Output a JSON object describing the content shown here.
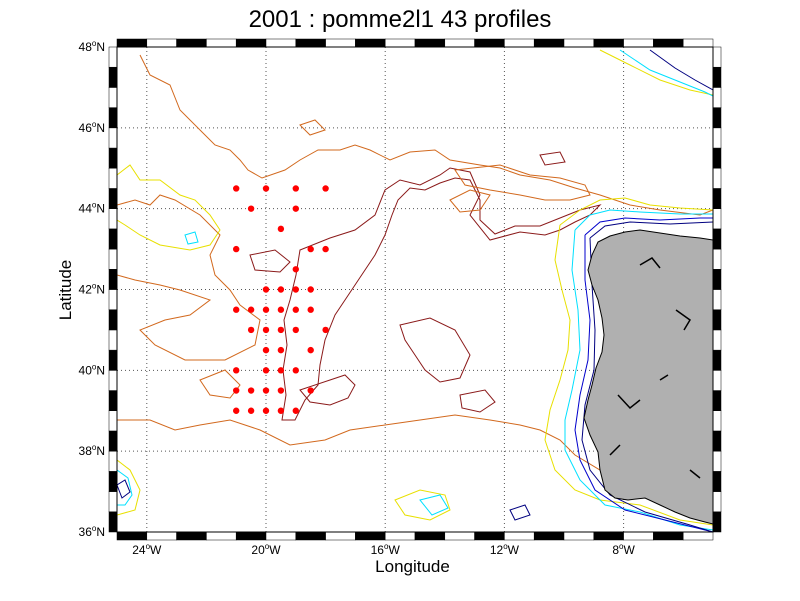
{
  "title": "2001 : pomme2l1  43 profiles",
  "xlabel": "Longitude",
  "ylabel": "Latitude",
  "colors": {
    "land": "#b0b0b0",
    "profile": "#ff0000",
    "contour_deep": "#8b1a1a",
    "contour_mid": "#d2691e",
    "contour_orange": "#e07020",
    "contour_yellow": "#e8e000",
    "contour_cyan": "#00e0ff",
    "contour_blue": "#0000cc",
    "contour_navy": "#000080",
    "grid": "#555555"
  },
  "map": {
    "lon_range": [
      -25,
      -5
    ],
    "lat_range": [
      36,
      48
    ],
    "x_ticks": [
      {
        "lon": -24,
        "text": "24",
        "hemi": "W"
      },
      {
        "lon": -20,
        "text": "20",
        "hemi": "W"
      },
      {
        "lon": -16,
        "text": "16",
        "hemi": "W"
      },
      {
        "lon": -12,
        "text": "12",
        "hemi": "W"
      },
      {
        "lon": -8,
        "text": "8",
        "hemi": "W"
      }
    ],
    "y_ticks": [
      {
        "lat": 36,
        "text": "36",
        "hemi": "N"
      },
      {
        "lat": 38,
        "text": "38",
        "hemi": "N"
      },
      {
        "lat": 40,
        "text": "40",
        "hemi": "N"
      },
      {
        "lat": 42,
        "text": "42",
        "hemi": "N"
      },
      {
        "lat": 44,
        "text": "44",
        "hemi": "N"
      },
      {
        "lat": 46,
        "text": "46",
        "hemi": "N"
      },
      {
        "lat": 48,
        "text": "48",
        "hemi": "N"
      }
    ],
    "profiles": [
      [
        -21,
        44.5
      ],
      [
        -20,
        44.5
      ],
      [
        -19,
        44.5
      ],
      [
        -18,
        44.5
      ],
      [
        -20.5,
        44
      ],
      [
        -19,
        44
      ],
      [
        -19.5,
        43.5
      ],
      [
        -21,
        43
      ],
      [
        -18.5,
        43
      ],
      [
        -18,
        43
      ],
      [
        -19,
        42.5
      ],
      [
        -20,
        42
      ],
      [
        -19.5,
        42
      ],
      [
        -19,
        42
      ],
      [
        -18.5,
        42
      ],
      [
        -21,
        41.5
      ],
      [
        -20.5,
        41.5
      ],
      [
        -20,
        41.5
      ],
      [
        -19.5,
        41.5
      ],
      [
        -19,
        41.5
      ],
      [
        -18.5,
        41.5
      ],
      [
        -20.5,
        41
      ],
      [
        -20,
        41
      ],
      [
        -19.5,
        41
      ],
      [
        -19,
        41
      ],
      [
        -18,
        41
      ],
      [
        -20,
        40.5
      ],
      [
        -19.5,
        40.5
      ],
      [
        -18.5,
        40.5
      ],
      [
        -21,
        40
      ],
      [
        -20,
        40
      ],
      [
        -19.5,
        40
      ],
      [
        -19,
        40
      ],
      [
        -21,
        39.5
      ],
      [
        -20.5,
        39.5
      ],
      [
        -20,
        39.5
      ],
      [
        -19.5,
        39.5
      ],
      [
        -18.5,
        39.5
      ],
      [
        -21,
        39
      ],
      [
        -20.5,
        39
      ],
      [
        -20,
        39
      ],
      [
        -19.5,
        39
      ],
      [
        -19,
        39
      ]
    ]
  }
}
